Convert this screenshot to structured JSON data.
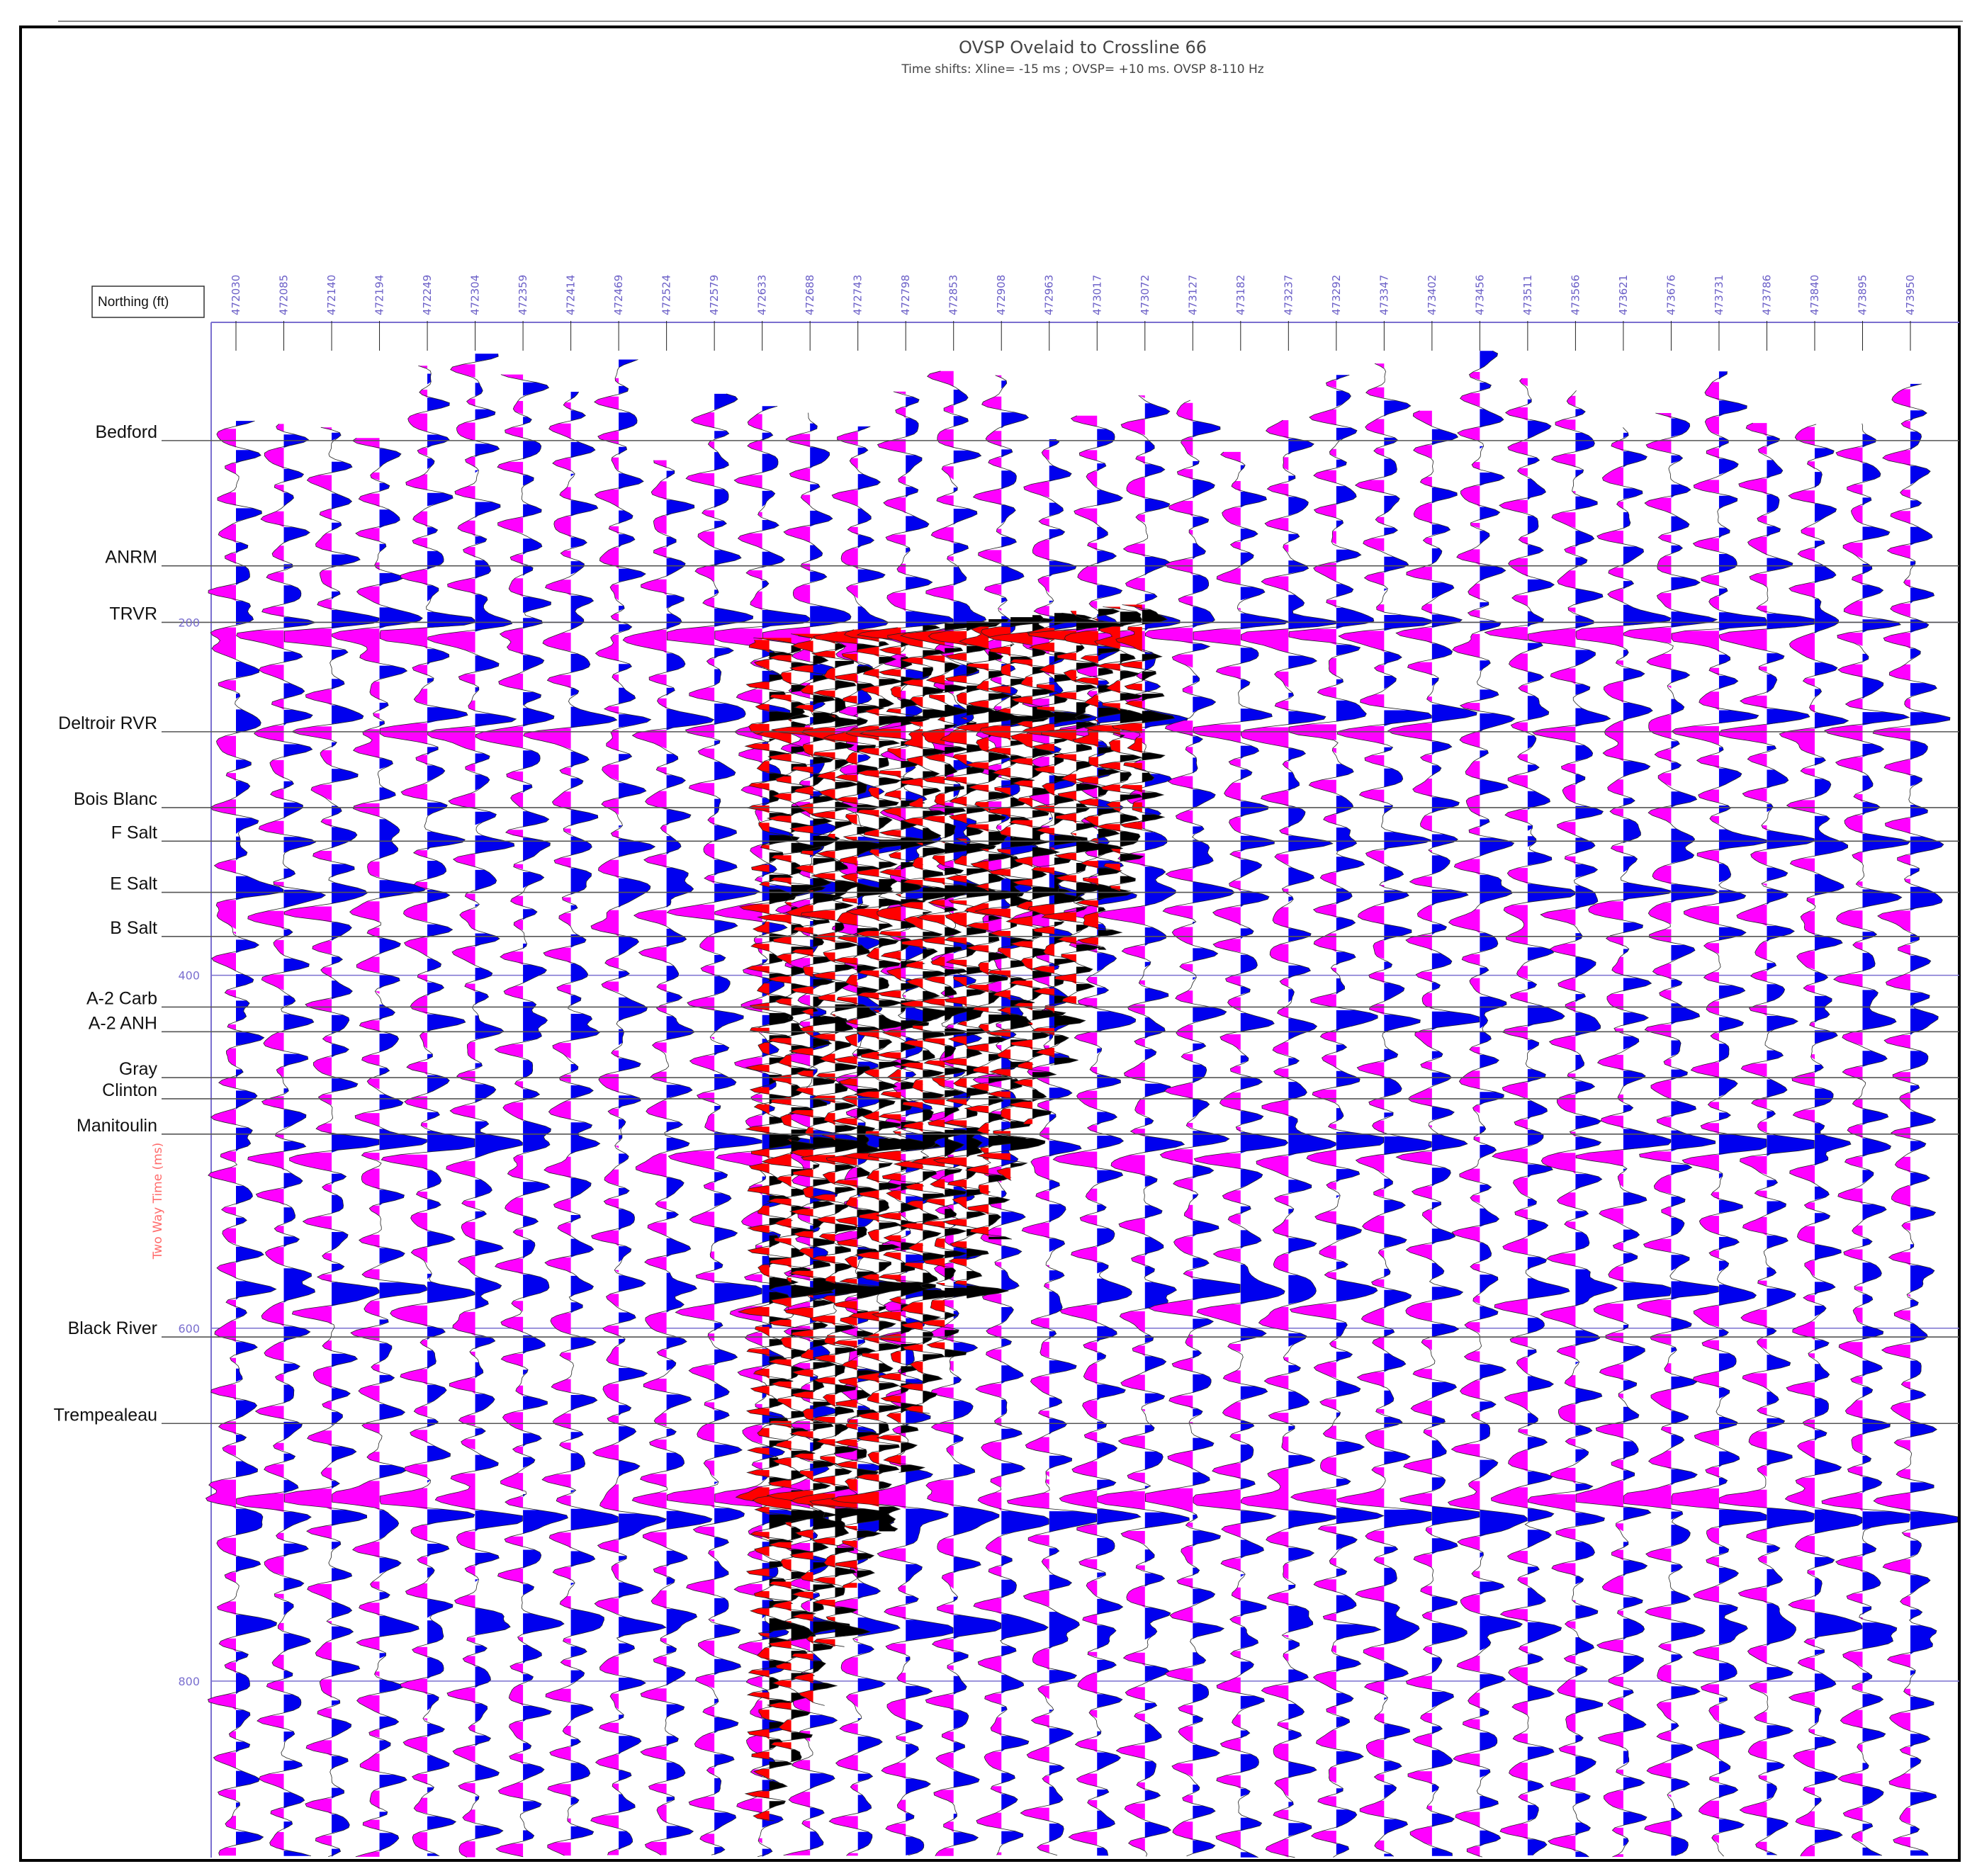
{
  "chart_data": {
    "type": "seismic wiggle section",
    "title": "OVSP Ovelaid to Crossline 66",
    "subtitle": "Time shifts: Xline= -15 ms ; OVSP= +10 ms. OVSP 8-110 Hz",
    "xlabel": "Northing (ft)",
    "ylabel": "Two Way Time (ms)",
    "x_ticks": [
      "472030",
      "472085",
      "472140",
      "472194",
      "472249",
      "472304",
      "472359",
      "472414",
      "472469",
      "472524",
      "472579",
      "472633",
      "472688",
      "472743",
      "472798",
      "472853",
      "472908",
      "472963",
      "473017",
      "473072",
      "473127",
      "473182",
      "473237",
      "473292",
      "473347",
      "473402",
      "473456",
      "473511",
      "473566",
      "473621",
      "473676",
      "473731",
      "473786",
      "473840",
      "473895",
      "473950"
    ],
    "y_ticks": [
      200,
      400,
      600,
      800
    ],
    "ylim": [
      30,
      900
    ],
    "horizons": [
      {
        "name": "Bedford",
        "time": 97
      },
      {
        "name": "ANRM",
        "time": 168
      },
      {
        "name": "TRVR",
        "time": 200
      },
      {
        "name": "Deltroir RVR",
        "time": 262
      },
      {
        "name": "Bois Blanc",
        "time": 305
      },
      {
        "name": "F Salt",
        "time": 324
      },
      {
        "name": "E Salt",
        "time": 353
      },
      {
        "name": "B Salt",
        "time": 378
      },
      {
        "name": "A-2 Carb",
        "time": 418
      },
      {
        "name": "A-2 ANH",
        "time": 432
      },
      {
        "name": "Gray",
        "time": 458
      },
      {
        "name": "Clinton",
        "time": 470
      },
      {
        "name": "Manitoulin",
        "time": 490
      },
      {
        "name": "Black River",
        "time": 605
      },
      {
        "name": "Trempealeau",
        "time": 654
      }
    ],
    "colors": {
      "positive": "#0000ee",
      "negative": "#ff00ff",
      "ovsp_positive": "#000000",
      "ovsp_negative": "#ff0000",
      "axis": "#7a6fcf",
      "horizon_line": "#555555"
    },
    "ovsp_overlay": {
      "trace_range": [
        "472633",
        "473072"
      ]
    }
  }
}
